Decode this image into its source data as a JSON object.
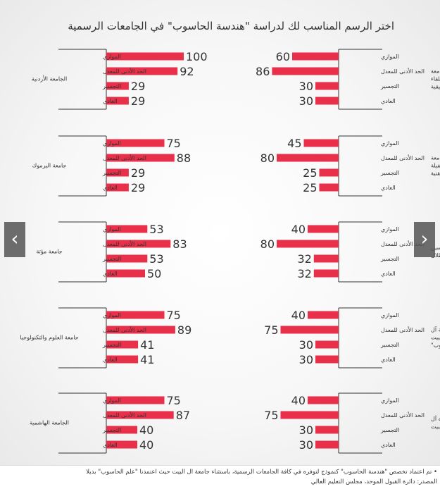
{
  "title": "اختر الرسم المناسب لك لدراسة \"هندسة الحاسوب\" في الجامعات الرسمية",
  "footnote": "• تم اعتماد تخصص \"هندسة الحاسوب\" كنموذج لتوفره في كافة الجامعات الرسمية، باستثناء جامعة آل البيت حيث اعتمدنا \"علم الحاسوب\" بديلا",
  "source": "المصدر: دائرة القبول الموحد، مجلس التعليم العالي",
  "nav": {
    "prev": "‹",
    "next": "›"
  },
  "colors": {
    "bar": "#e8304a",
    "axis": "#333333",
    "text": "#333333"
  },
  "chart_data": [
    {
      "type": "bar",
      "university": "جامعة البلقاء التطبيقية",
      "categories": [
        "الموازي",
        "الحد الأدنى للمعدل",
        "التجسير",
        "العادي"
      ],
      "values": [
        60,
        86,
        30,
        30
      ]
    },
    {
      "type": "bar",
      "university": "الجامعة الأردنية",
      "categories": [
        "الموازي",
        "الحد الأدنى للمعدل",
        "التجسير",
        "العادي"
      ],
      "values": [
        100,
        92,
        29,
        29
      ]
    },
    {
      "type": "bar",
      "university": "جامعة الطفيلة التقنية",
      "categories": [
        "الموازي",
        "الحد الأدنى للمعدل",
        "التجسير",
        "العادي"
      ],
      "values": [
        45,
        80,
        25,
        25
      ]
    },
    {
      "type": "bar",
      "university": "جامعة اليرموك",
      "categories": [
        "الموازي",
        "الحد الأدنى للمعدل",
        "التجسير",
        "العادي"
      ],
      "values": [
        75,
        88,
        29,
        29
      ]
    },
    {
      "type": "bar",
      "university": "جامعة الحسين بن طلال",
      "categories": [
        "الموازي",
        "الحد الأدنى للمعدل",
        "التجسير",
        "العادي"
      ],
      "values": [
        40,
        80,
        32,
        32
      ]
    },
    {
      "type": "bar",
      "university": "جامعة مؤتة",
      "categories": [
        "الموازي",
        "الحد الأدنى للمعدل",
        "التجسير",
        "العادي"
      ],
      "values": [
        53,
        83,
        53,
        50
      ]
    },
    {
      "type": "bar",
      "university": "جامعة آل البيت",
      "note": "\"علم الحاسوب\"",
      "categories": [
        "الموازي",
        "الحد الأدنى للمعدل",
        "التجسير",
        "العادي"
      ],
      "values": [
        40,
        75,
        30,
        30
      ]
    },
    {
      "type": "bar",
      "university": "جامعة العلوم والتكنولوجيا",
      "categories": [
        "الموازي",
        "الحد الأدنى للمعدل",
        "التجسير",
        "العادي"
      ],
      "values": [
        75,
        89,
        41,
        41
      ]
    },
    {
      "type": "bar",
      "university": "جامعة آل البيت",
      "categories": [
        "الموازي",
        "الحد الأدنى للمعدل",
        "التجسير",
        "العادي"
      ],
      "values": [
        40,
        75,
        30,
        30
      ]
    },
    {
      "type": "bar",
      "university": "الجامعة الهاشمية",
      "categories": [
        "الموازي",
        "الحد الأدنى للمعدل",
        "التجسير",
        "العادي"
      ],
      "values": [
        75,
        87,
        40,
        40
      ]
    }
  ]
}
